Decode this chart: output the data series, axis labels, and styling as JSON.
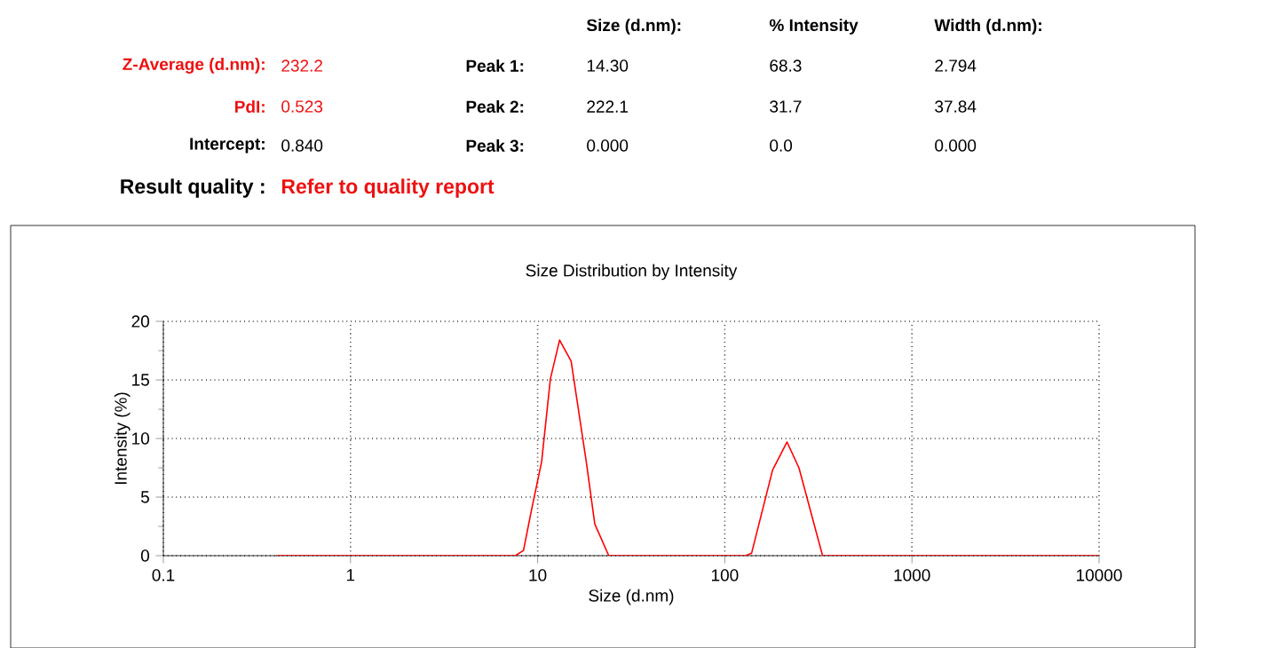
{
  "chart_data": {
    "type": "line",
    "title": "Size Distribution by Intensity",
    "xlabel": "Size (d.nm)",
    "ylabel": "Intensity (%)",
    "log": "x",
    "xlim": [
      0.1,
      10000
    ],
    "xticks": [
      0.1,
      1,
      10,
      100,
      1000,
      10000
    ],
    "ylim": [
      0,
      20
    ],
    "yticks": [
      0,
      5,
      10,
      15,
      20
    ],
    "grid": true,
    "marker": "none",
    "line_style": "solid",
    "series": [
      {
        "color": "#ff0000",
        "x": [
          0.4,
          7.6,
          8.4,
          9.3,
          10.5,
          11.7,
          13.1,
          15.1,
          18.2,
          20.2,
          24,
          129,
          139,
          180,
          215,
          249,
          333,
          10000
        ],
        "values": [
          0,
          0,
          0.45,
          4.0,
          8.0,
          15.1,
          18.4,
          16.6,
          8.0,
          2.7,
          0,
          0,
          0.2,
          7.3,
          9.7,
          7.5,
          0,
          0
        ]
      }
    ],
    "annotations": [
      "Size (d.nm):",
      "% Intensity",
      "Width (d.nm):",
      "Z-Average (d.nm):",
      "232.2",
      "Peak 1:",
      "14.30",
      "68.3",
      "2.794",
      "PdI:",
      "0.523",
      "Peak 2:",
      "222.1",
      "31.7",
      "37.84",
      "Intercept:",
      "0.840",
      "Peak 3:",
      "0.000",
      "0.0",
      "0.000",
      "Result quality :",
      "Refer to quality report"
    ]
  }
}
